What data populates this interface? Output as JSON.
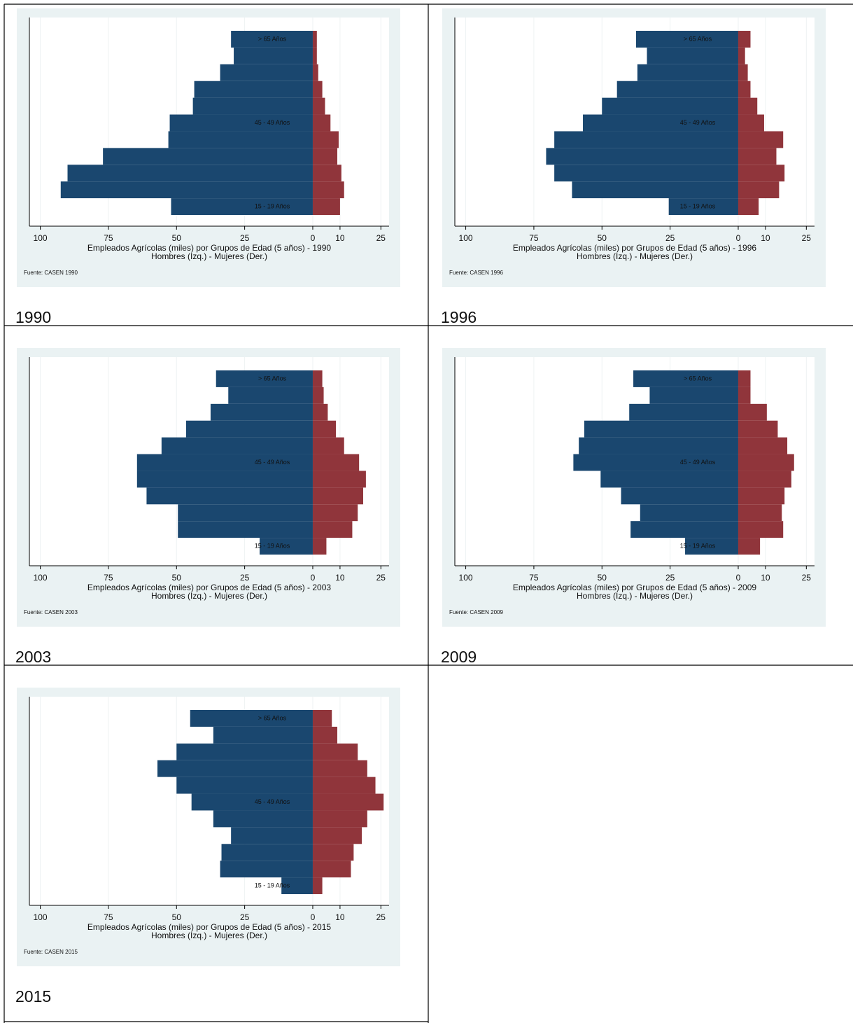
{
  "captions": [
    "1990",
    "1996",
    "2003",
    "2009",
    "2015"
  ],
  "chart_data": [
    {
      "type": "bar",
      "horizontal": true,
      "grid": true,
      "categories": [
        "15 - 19 Años",
        null,
        null,
        null,
        null,
        "45 - 49 Años",
        null,
        null,
        null,
        null,
        "> 65 Años"
      ],
      "series": [
        {
          "color": "#1a476f",
          "values": [
            -52,
            -92.5,
            -90,
            -77,
            -53,
            -52.5,
            -44,
            -43.5,
            -34,
            -29,
            -30
          ]
        },
        {
          "color": "#90353b",
          "values": [
            10,
            11.5,
            10.5,
            9,
            9.5,
            6.5,
            4.5,
            3.5,
            2,
            1.5,
            1.5
          ]
        }
      ],
      "xlim": [
        -104,
        28
      ],
      "xticks": [
        {
          "value": -100,
          "label": "100"
        },
        {
          "value": -75,
          "label": "75"
        },
        {
          "value": -50,
          "label": "50"
        },
        {
          "value": -25,
          "label": "25"
        },
        0,
        10,
        25
      ],
      "xlabel": "Empleados Agrícolas (miles) por Grupos de Edad (5 años) - 1990",
      "xlabel_note": "Hombres (Izq.) - Mujeres (Der.)",
      "note": "Fuente: CASEN 1990"
    },
    {
      "type": "bar",
      "horizontal": true,
      "grid": true,
      "categories": [
        "15 - 19 Años",
        null,
        null,
        null,
        null,
        "45 - 49 Años",
        null,
        null,
        null,
        null,
        "> 65 Años"
      ],
      "series": [
        {
          "color": "#1a476f",
          "values": [
            -25.5,
            -61,
            -67.5,
            -70.5,
            -67.5,
            -57,
            -50,
            -44.5,
            -37,
            -33.5,
            -37.5
          ]
        },
        {
          "color": "#90353b",
          "values": [
            7.5,
            15,
            17,
            14,
            16.5,
            9.5,
            7,
            4.5,
            3.5,
            2.5,
            4.5
          ]
        }
      ],
      "xlim": [
        -104,
        28
      ],
      "xticks": [
        {
          "value": -100,
          "label": "100"
        },
        {
          "value": -75,
          "label": "75"
        },
        {
          "value": -50,
          "label": "50"
        },
        {
          "value": -25,
          "label": "25"
        },
        0,
        10,
        25
      ],
      "xlabel": "Empleados Agrícolas (miles) por Grupos de Edad (5 años) - 1996",
      "xlabel_note": "Hombres (Izq.) - Mujeres (Der.)",
      "note": "Fuente: CASEN 1996"
    },
    {
      "type": "bar",
      "horizontal": true,
      "grid": true,
      "categories": [
        "15 - 19 Años",
        null,
        null,
        null,
        null,
        "45 - 49 Años",
        null,
        null,
        null,
        null,
        "> 65 Años"
      ],
      "series": [
        {
          "color": "#1a476f",
          "values": [
            -19.5,
            -49.5,
            -49.5,
            -61,
            -64.5,
            -64.5,
            -55.5,
            -46.5,
            -37.5,
            -31,
            -35.5
          ]
        },
        {
          "color": "#90353b",
          "values": [
            5,
            14.5,
            16.5,
            18.5,
            19.5,
            17,
            11.5,
            8.5,
            5.5,
            4,
            3.5
          ]
        }
      ],
      "xlim": [
        -104,
        28
      ],
      "xticks": [
        {
          "value": -100,
          "label": "100"
        },
        {
          "value": -75,
          "label": "75"
        },
        {
          "value": -50,
          "label": "50"
        },
        {
          "value": -25,
          "label": "25"
        },
        0,
        10,
        25
      ],
      "xlabel": "Empleados Agrícolas (miles) por Grupos de Edad (5 años) - 2003",
      "xlabel_note": "Hombres (Izq.) - Mujeres (Der.)",
      "note": "Fuente: CASEN 2003"
    },
    {
      "type": "bar",
      "horizontal": true,
      "grid": true,
      "categories": [
        "15 - 19 Años",
        null,
        null,
        null,
        null,
        "45 - 49 Años",
        null,
        null,
        null,
        null,
        "> 65 Años"
      ],
      "series": [
        {
          "color": "#1a476f",
          "values": [
            -19.5,
            -39.5,
            -36,
            -43,
            -50.5,
            -60.5,
            -58.5,
            -56.5,
            -40,
            -32.5,
            -38.5
          ]
        },
        {
          "color": "#90353b",
          "values": [
            8,
            16.5,
            16,
            17,
            19.5,
            20.5,
            18,
            14.5,
            10.5,
            4.5,
            4.5
          ]
        }
      ],
      "xlim": [
        -104,
        28
      ],
      "xticks": [
        {
          "value": -100,
          "label": "100"
        },
        {
          "value": -75,
          "label": "75"
        },
        {
          "value": -50,
          "label": "50"
        },
        {
          "value": -25,
          "label": "25"
        },
        0,
        10,
        25
      ],
      "xlabel": "Empleados Agrícolas (miles) por Grupos de Edad (5 años) - 2009",
      "xlabel_note": "Hombres (Izq.) - Mujeres (Der.)",
      "note": "Fuente: CASEN 2009"
    },
    {
      "type": "bar",
      "horizontal": true,
      "grid": true,
      "categories": [
        "15 - 19 Años",
        null,
        null,
        null,
        null,
        "45 - 49 Años",
        null,
        null,
        null,
        null,
        "> 65 Años"
      ],
      "series": [
        {
          "color": "#1a476f",
          "values": [
            -11.5,
            -34,
            -33.5,
            -30,
            -36.5,
            -44.5,
            -50,
            -57,
            -50,
            -36.5,
            -45
          ]
        },
        {
          "color": "#90353b",
          "values": [
            3.5,
            14,
            15,
            18,
            20,
            26,
            23,
            20,
            16.5,
            9,
            7
          ]
        }
      ],
      "xlim": [
        -104,
        28
      ],
      "xticks": [
        {
          "value": -100,
          "label": "100"
        },
        {
          "value": -75,
          "label": "75"
        },
        {
          "value": -50,
          "label": "50"
        },
        {
          "value": -25,
          "label": "25"
        },
        0,
        10,
        25
      ],
      "xlabel": "Empleados Agrícolas (miles) por Grupos de Edad (5 años) - 2015",
      "xlabel_note": "Hombres (Izq.) - Mujeres (Der.)",
      "note": "Fuente: CASEN 2015"
    }
  ]
}
